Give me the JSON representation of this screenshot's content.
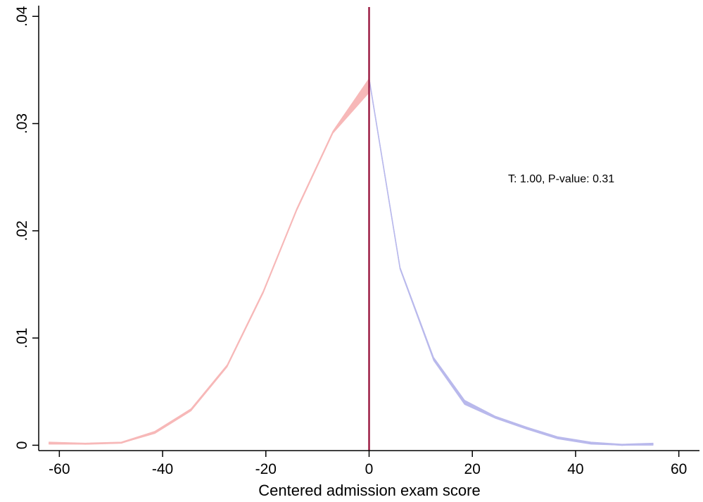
{
  "chart_data": {
    "type": "line",
    "title": "",
    "xlabel": "Centered admission exam score",
    "ylabel": "",
    "xlim": [
      -64,
      64
    ],
    "ylim": [
      -0.0005,
      0.041
    ],
    "x_ticks": [
      -60,
      -40,
      -20,
      0,
      20,
      40,
      60
    ],
    "x_tick_labels": [
      "-60",
      "-40",
      "-20",
      "0",
      "20",
      "40",
      "60"
    ],
    "y_ticks": [
      0,
      0.01,
      0.02,
      0.03,
      0.04
    ],
    "y_tick_labels": [
      "0",
      ".01",
      ".02",
      ".03",
      ".04"
    ],
    "grid": false,
    "annotation": "T: 1.00, P-value: 0.31",
    "cutoff_x": 0,
    "colors": {
      "left": "#f7b8b8",
      "right": "#b9b9ec",
      "cutoff": "#9b1d44",
      "axis": "#000000"
    },
    "series": [
      {
        "side": "left",
        "x": [
          -62,
          -55,
          -48,
          -41.5,
          -34.5,
          -27.5,
          -20.5,
          -14,
          -7,
          0
        ],
        "y": [
          0.0002,
          0.0001,
          0.0002,
          0.0012,
          0.0033,
          0.0074,
          0.0143,
          0.022,
          0.0292,
          0.0335
        ],
        "ci_low": [
          0.0001,
          0.0001,
          0.0002,
          0.0011,
          0.0032,
          0.0073,
          0.0142,
          0.0219,
          0.0291,
          0.0329
        ],
        "ci_high": [
          0.0003,
          0.0002,
          0.0003,
          0.0013,
          0.0034,
          0.0075,
          0.0144,
          0.0221,
          0.0293,
          0.0342
        ]
      },
      {
        "side": "right",
        "x": [
          0,
          6,
          12.5,
          18.5,
          24.5,
          30.5,
          36.5,
          43,
          49,
          55
        ],
        "y": [
          0.0342,
          0.0165,
          0.0081,
          0.004,
          0.0026,
          0.0016,
          0.0007,
          0.0002,
          0.0,
          0.0001
        ],
        "ci_low": [
          0.0341,
          0.0164,
          0.0079,
          0.0038,
          0.0025,
          0.0015,
          0.0006,
          0.0001,
          0.0,
          0.0
        ],
        "ci_high": [
          0.0343,
          0.0166,
          0.0082,
          0.0042,
          0.0027,
          0.0017,
          0.0008,
          0.0003,
          0.0001,
          0.0002
        ]
      }
    ]
  }
}
